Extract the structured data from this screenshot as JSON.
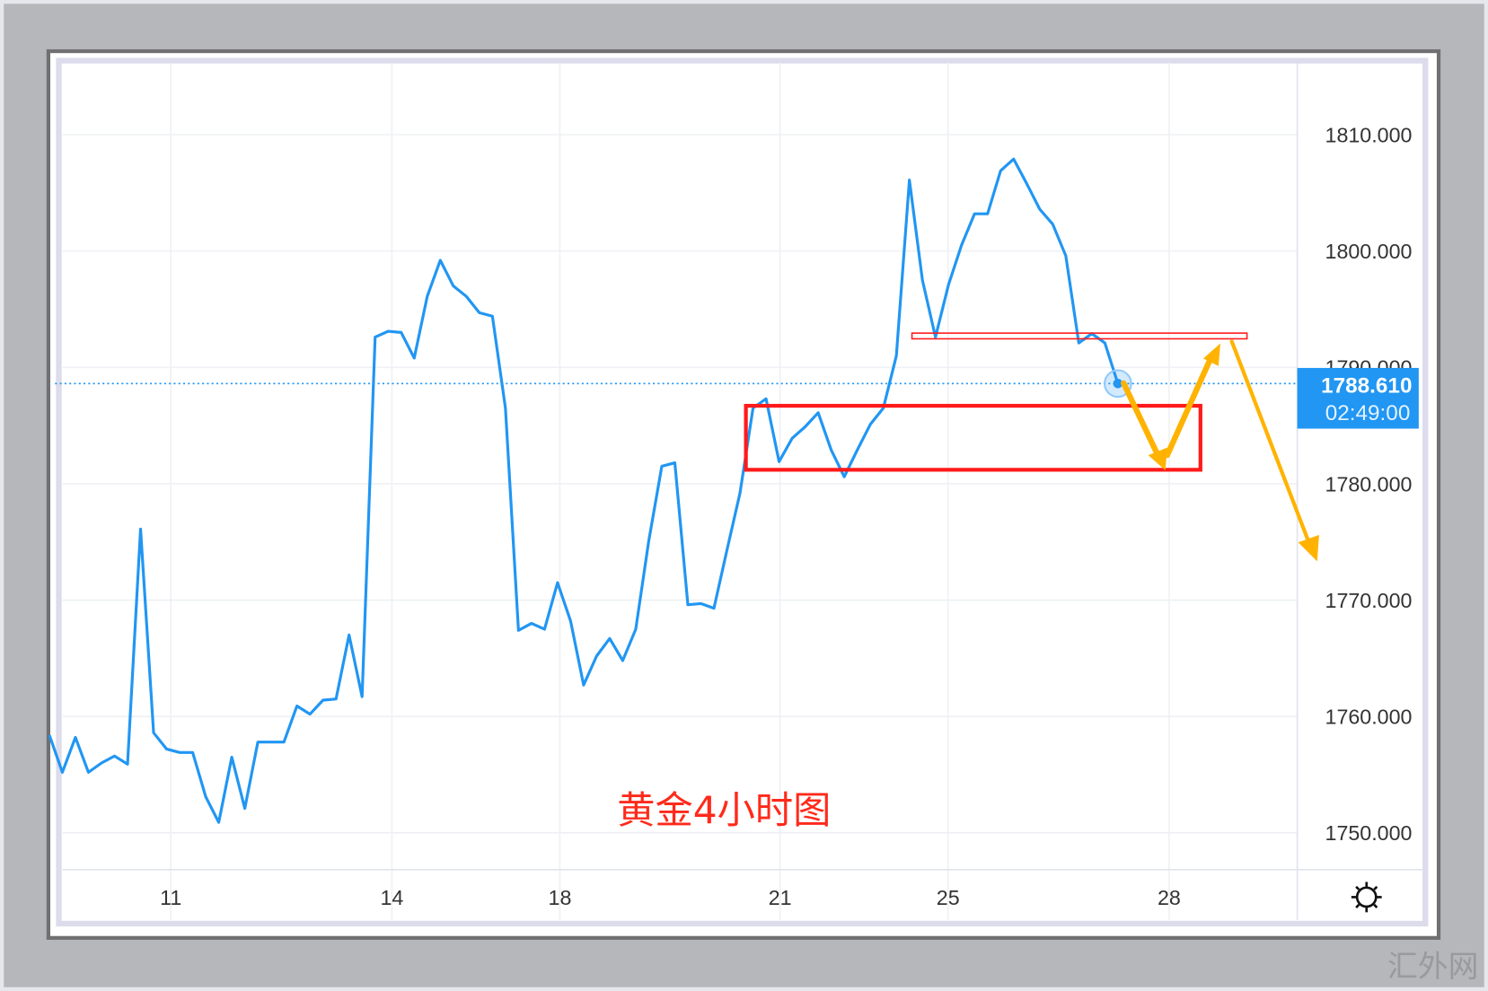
{
  "chart_data": {
    "type": "line",
    "title": "黄金4小时图",
    "ylim": [
      1745,
      1815
    ],
    "y_ticks": [
      "1810.000",
      "1800.000",
      "1790.000",
      "1780.000",
      "1770.000",
      "1760.000",
      "1750.000"
    ],
    "y_tick_values": [
      1810,
      1800,
      1790,
      1780,
      1770,
      1760,
      1750
    ],
    "x_ticks": [
      "11",
      "14",
      "18",
      "21",
      "25",
      "28"
    ],
    "grid": true,
    "series": [
      {
        "color": "#2196f3",
        "values": [
          1758.4,
          1755.2,
          1758.2,
          1755.2,
          1756.0,
          1756.6,
          1755.9,
          1776.1,
          1758.6,
          1757.2,
          1756.9,
          1756.9,
          1753.1,
          1750.9,
          1756.5,
          1752.1,
          1757.8,
          1757.8,
          1757.8,
          1760.9,
          1760.2,
          1761.4,
          1761.5,
          1767.0,
          1761.7,
          1792.6,
          1793.1,
          1793.0,
          1790.8,
          1796.1,
          1799.2,
          1797.0,
          1796.1,
          1794.7,
          1794.4,
          1786.5,
          1767.4,
          1768.0,
          1767.5,
          1771.5,
          1768.2,
          1762.7,
          1765.2,
          1766.7,
          1764.8,
          1767.5,
          1775.1,
          1781.5,
          1781.8,
          1769.6,
          1769.7,
          1769.3,
          1774.3,
          1779.2,
          1786.5,
          1787.3,
          1781.9,
          1783.9,
          1784.9,
          1786.1,
          1782.9,
          1780.6,
          1782.9,
          1785.1,
          1786.5,
          1791.0,
          1806.1,
          1797.5,
          1792.6,
          1797.1,
          1800.5,
          1803.2,
          1803.2,
          1806.9,
          1807.9,
          1805.8,
          1803.6,
          1802.3,
          1799.6,
          1792.1,
          1792.9,
          1792.1,
          1788.6
        ]
      }
    ],
    "last_price": {
      "price": "1788.610",
      "countdown": "02:49:00",
      "value": 1788.61,
      "color": "#2196f3"
    },
    "annotations": {
      "support_zone": {
        "top": 1786.7,
        "bottom": 1781.2,
        "color": "#ff1a1a"
      },
      "resistance_line": {
        "value": 1792.7,
        "color": "#ff1a1a"
      },
      "arrow_color": "#ffb300"
    }
  },
  "watermark": "汇外网",
  "settings_icon": "gear-icon"
}
